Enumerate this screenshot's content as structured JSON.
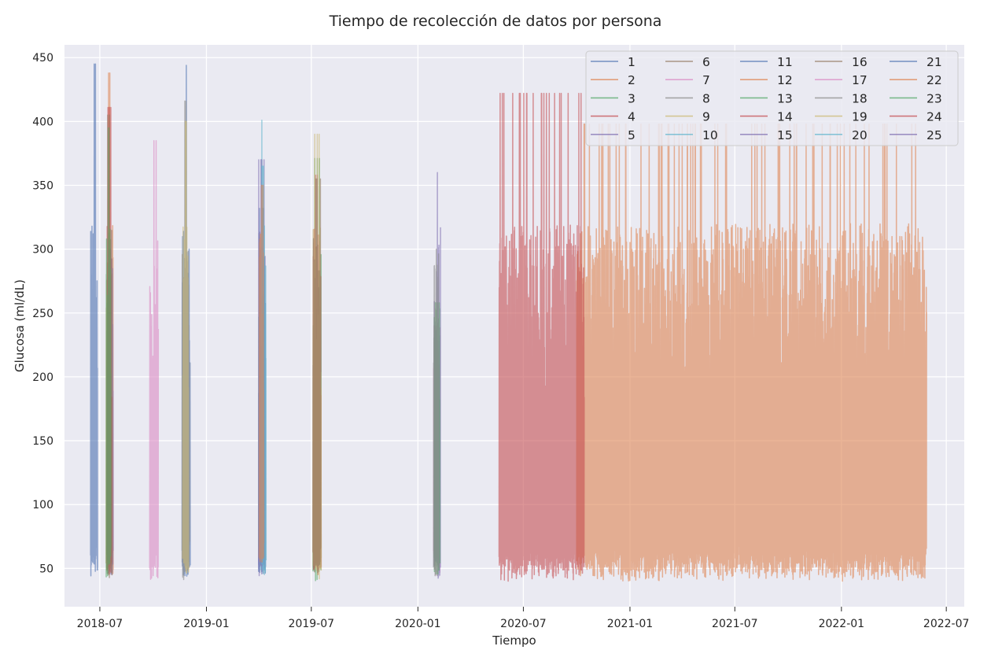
{
  "chart_data": {
    "type": "line",
    "title": "Tiempo de recolección de datos por persona",
    "xlabel": "Tiempo",
    "ylabel": "Glucosa (ml/dL)",
    "ylim": [
      20,
      460
    ],
    "y_ticks": [
      50,
      100,
      150,
      200,
      250,
      300,
      350,
      400,
      450
    ],
    "xlim": [
      "2018-05-01",
      "2022-08-01"
    ],
    "x_ticks": [
      {
        "date": "2018-07-01",
        "label": "2018-07"
      },
      {
        "date": "2019-01-01",
        "label": "2019-01"
      },
      {
        "date": "2019-07-01",
        "label": "2019-07"
      },
      {
        "date": "2020-01-01",
        "label": "2020-01"
      },
      {
        "date": "2020-07-01",
        "label": "2020-07"
      },
      {
        "date": "2021-01-01",
        "label": "2021-01"
      },
      {
        "date": "2021-07-01",
        "label": "2021-07"
      },
      {
        "date": "2022-01-01",
        "label": "2022-01"
      },
      {
        "date": "2022-07-01",
        "label": "2022-07"
      }
    ],
    "grid": true,
    "legend_position": "top-right",
    "series": [
      {
        "name": "1",
        "color": "#4c72b0",
        "start": "2018-06-15",
        "end": "2018-06-27",
        "min": 40,
        "max": 445
      },
      {
        "name": "2",
        "color": "#dd8452",
        "start": "2018-07-12",
        "end": "2018-07-24",
        "min": 40,
        "max": 438
      },
      {
        "name": "3",
        "color": "#55a868",
        "start": "2018-07-12",
        "end": "2018-07-20",
        "min": 40,
        "max": 395
      },
      {
        "name": "4",
        "color": "#c44e52",
        "start": "2018-07-13",
        "end": "2018-07-22",
        "min": 40,
        "max": 411
      },
      {
        "name": "5",
        "color": "#8172b3",
        "start": "2018-07-14",
        "end": "2018-07-24",
        "min": 45,
        "max": 300
      },
      {
        "name": "6",
        "color": "#937860",
        "start": "2018-07-13",
        "end": "2018-07-22",
        "min": 40,
        "max": 405
      },
      {
        "name": "7",
        "color": "#da8bc3",
        "start": "2018-09-25",
        "end": "2018-10-10",
        "min": 40,
        "max": 385
      },
      {
        "name": "8",
        "color": "#8c8c8c",
        "start": "2018-11-20",
        "end": "2018-12-03",
        "min": 40,
        "max": 416
      },
      {
        "name": "9",
        "color": "#ccb974",
        "start": "2018-11-21",
        "end": "2018-12-01",
        "min": 45,
        "max": 400
      },
      {
        "name": "10",
        "color": "#64b5cd",
        "start": "2019-04-01",
        "end": "2019-04-12",
        "min": 45,
        "max": 401
      },
      {
        "name": "11",
        "color": "#4c72b0",
        "start": "2018-11-20",
        "end": "2018-12-04",
        "min": 40,
        "max": 444
      },
      {
        "name": "12",
        "color": "#dd8452",
        "start": "2019-04-02",
        "end": "2019-04-10",
        "min": 50,
        "max": 350
      },
      {
        "name": "13",
        "color": "#55a868",
        "start": "2019-07-04",
        "end": "2019-07-18",
        "min": 40,
        "max": 371
      },
      {
        "name": "14",
        "color": "#c44e52",
        "start": "2019-07-04",
        "end": "2019-07-18",
        "min": 40,
        "max": 358
      },
      {
        "name": "15",
        "color": "#8172b3",
        "start": "2019-04-01",
        "end": "2019-04-12",
        "min": 40,
        "max": 370
      },
      {
        "name": "16",
        "color": "#937860",
        "start": "2019-07-04",
        "end": "2019-07-17",
        "min": 40,
        "max": 355
      },
      {
        "name": "17",
        "color": "#da8bc3",
        "start": "2020-01-28",
        "end": "2020-02-08",
        "min": 40,
        "max": 240
      },
      {
        "name": "18",
        "color": "#8c8c8c",
        "start": "2020-01-28",
        "end": "2020-02-06",
        "min": 40,
        "max": 300
      },
      {
        "name": "19",
        "color": "#ccb974",
        "start": "2019-07-04",
        "end": "2019-07-18",
        "min": 40,
        "max": 390
      },
      {
        "name": "20",
        "color": "#64b5cd",
        "start": "2019-04-05",
        "end": "2019-04-14",
        "min": 45,
        "max": 365
      },
      {
        "name": "21",
        "color": "#4c72b0",
        "start": "2019-04-01",
        "end": "2019-04-13",
        "min": 40,
        "max": 332
      },
      {
        "name": "22",
        "color": "#dd8452",
        "start": "2020-10-01",
        "end": "2022-05-28",
        "min": 40,
        "max": 398
      },
      {
        "name": "23",
        "color": "#55a868",
        "start": "2020-01-29",
        "end": "2020-02-08",
        "min": 40,
        "max": 258
      },
      {
        "name": "24",
        "color": "#c44e52",
        "start": "2020-05-20",
        "end": "2020-10-14",
        "min": 40,
        "max": 422
      },
      {
        "name": "25",
        "color": "#8172b3",
        "start": "2020-01-29",
        "end": "2020-02-09",
        "min": 40,
        "max": 360
      }
    ]
  }
}
